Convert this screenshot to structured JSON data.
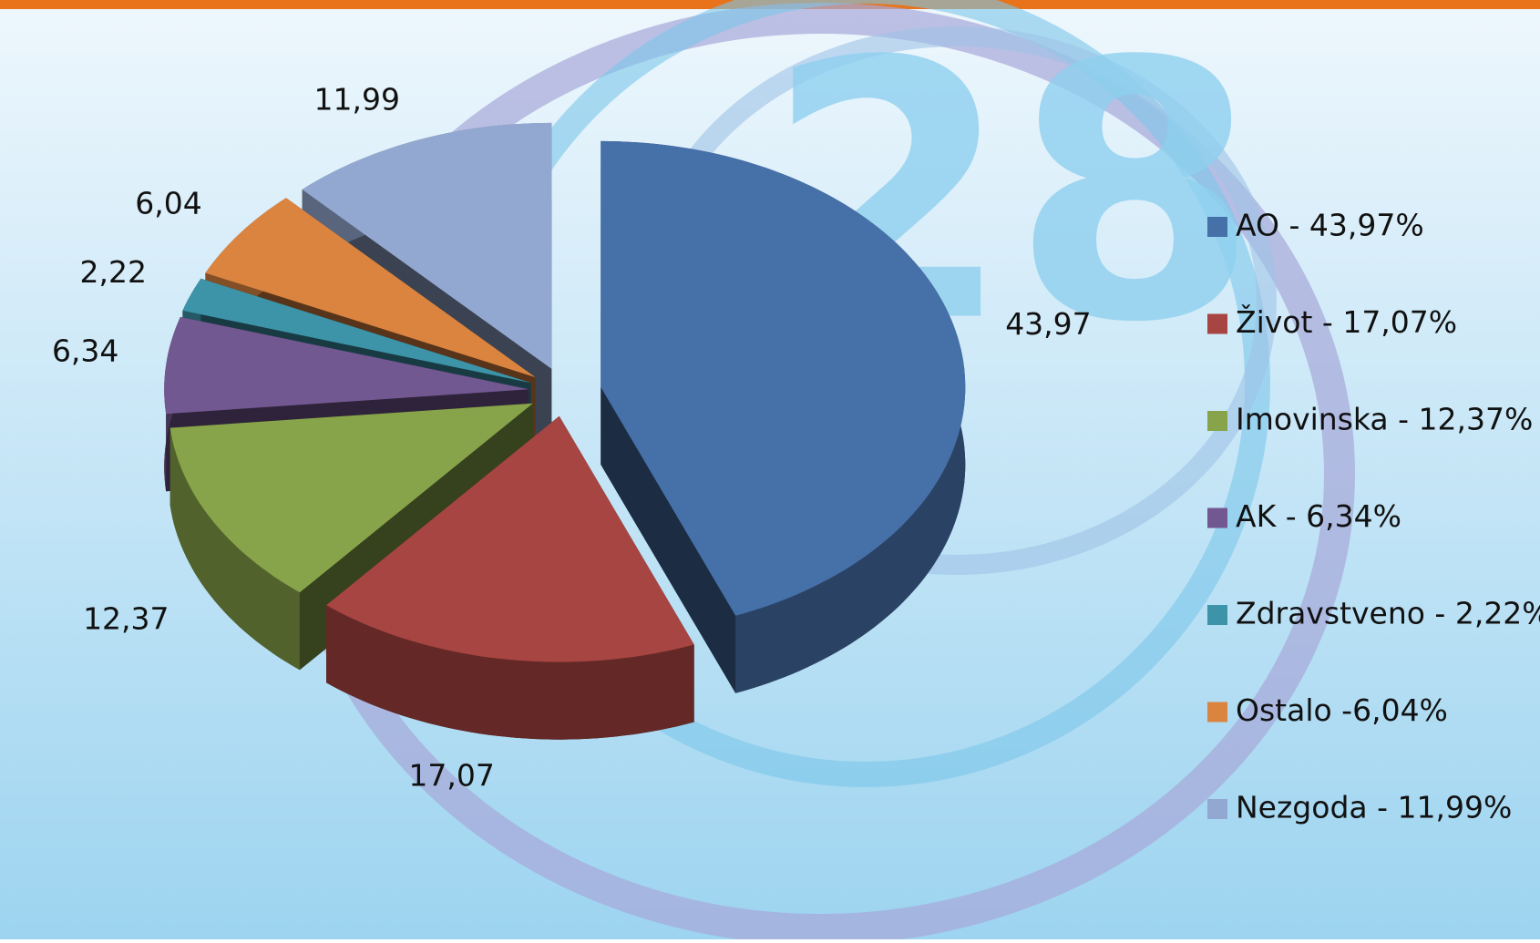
{
  "chart_data": {
    "type": "pie3d",
    "watermark": "28",
    "categories": [
      "AO - 43,97%",
      "Život - 17,07%",
      "Imovinska - 12,37%",
      "AK - 6,34%",
      "Zdravstveno - 2,22%",
      "Ostalo -6,04%",
      "Nezgoda - 11,99%"
    ],
    "values": [
      43.97,
      17.07,
      12.37,
      6.34,
      2.22,
      6.04,
      11.99
    ],
    "value_labels": [
      "43,97",
      "17,07",
      "12,37",
      "6,34",
      "2,22",
      "6,04",
      "11,99"
    ],
    "colors": [
      "#4670a8",
      "#a64541",
      "#88a44a",
      "#725890",
      "#3d94a8",
      "#db8440",
      "#93a8d0"
    ],
    "legend": "right"
  }
}
